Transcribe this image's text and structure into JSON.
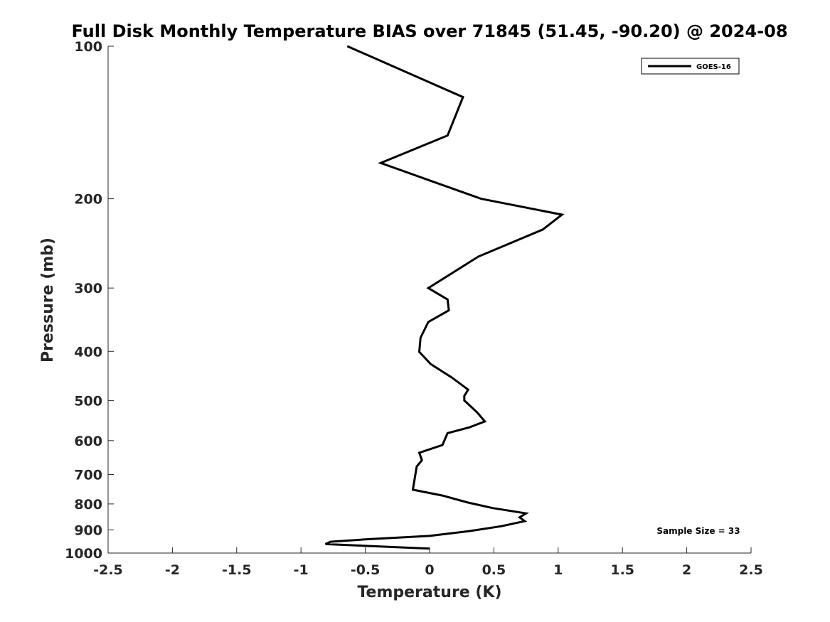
{
  "chart_data": {
    "type": "line",
    "title": "Full Disk Monthly Temperature BIAS over 71845 (51.45, -90.20) @ 2024-08",
    "xlabel": "Temperature (K)",
    "ylabel": "Pressure (mb)",
    "xlim": [
      -2.5,
      2.5
    ],
    "ylim": [
      100,
      1000
    ],
    "y_scale": "log",
    "y_reversed": true,
    "grid": false,
    "legend_position": "top-right",
    "x_ticks": [
      "-2.5",
      "-2",
      "-1.5",
      "-1",
      "-0.5",
      "0",
      "0.5",
      "1",
      "1.5",
      "2",
      "2.5"
    ],
    "x_tick_values": [
      -2.5,
      -2,
      -1.5,
      -1,
      -0.5,
      0,
      0.5,
      1,
      1.5,
      2,
      2.5
    ],
    "y_ticks": [
      "100",
      "200",
      "300",
      "400",
      "500",
      "600",
      "700",
      "800",
      "900",
      "1000"
    ],
    "y_tick_values": [
      100,
      200,
      300,
      400,
      500,
      600,
      700,
      800,
      900,
      1000
    ],
    "series": [
      {
        "name": "GOES-16",
        "color": "#000000",
        "points": [
          {
            "x": -0.64,
            "p": 100
          },
          {
            "x": 0.26,
            "p": 126
          },
          {
            "x": 0.14,
            "p": 150
          },
          {
            "x": -0.38,
            "p": 170
          },
          {
            "x": 0.0,
            "p": 184
          },
          {
            "x": 0.4,
            "p": 200
          },
          {
            "x": 1.03,
            "p": 215
          },
          {
            "x": 0.88,
            "p": 230
          },
          {
            "x": 0.38,
            "p": 260
          },
          {
            "x": -0.01,
            "p": 300
          },
          {
            "x": 0.14,
            "p": 316
          },
          {
            "x": 0.15,
            "p": 332
          },
          {
            "x": -0.01,
            "p": 350
          },
          {
            "x": -0.07,
            "p": 376
          },
          {
            "x": -0.08,
            "p": 401
          },
          {
            "x": 0.01,
            "p": 424
          },
          {
            "x": 0.17,
            "p": 450
          },
          {
            "x": 0.3,
            "p": 476
          },
          {
            "x": 0.27,
            "p": 490
          },
          {
            "x": 0.27,
            "p": 500
          },
          {
            "x": 0.37,
            "p": 528
          },
          {
            "x": 0.43,
            "p": 550
          },
          {
            "x": 0.31,
            "p": 565
          },
          {
            "x": 0.14,
            "p": 580
          },
          {
            "x": 0.1,
            "p": 612
          },
          {
            "x": -0.08,
            "p": 634
          },
          {
            "x": -0.06,
            "p": 656
          },
          {
            "x": -0.1,
            "p": 675
          },
          {
            "x": -0.13,
            "p": 750
          },
          {
            "x": 0.1,
            "p": 770
          },
          {
            "x": 0.3,
            "p": 795
          },
          {
            "x": 0.49,
            "p": 815
          },
          {
            "x": 0.75,
            "p": 835
          },
          {
            "x": 0.7,
            "p": 850
          },
          {
            "x": 0.74,
            "p": 865
          },
          {
            "x": 0.56,
            "p": 885
          },
          {
            "x": 0.31,
            "p": 905
          },
          {
            "x": 0.0,
            "p": 925
          },
          {
            "x": -0.5,
            "p": 940
          },
          {
            "x": -0.77,
            "p": 950
          },
          {
            "x": -0.81,
            "p": 960
          },
          {
            "x": 0.0,
            "p": 980
          }
        ]
      }
    ],
    "annotation": "Sample Size = 33"
  }
}
